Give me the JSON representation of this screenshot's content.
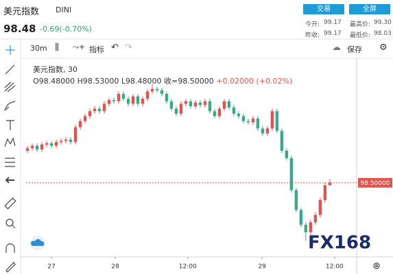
{
  "header": {
    "name": "美元指数",
    "code": "DINI",
    "price": "98.48",
    "change": "-0.69(-0.70%)",
    "buttons": [
      "交易",
      "全屏"
    ],
    "stats": [
      {
        "label": "今开:",
        "value": "99.17"
      },
      {
        "label": "最高价:",
        "value": "99.30"
      },
      {
        "label": "昨收:",
        "value": "99.17"
      },
      {
        "label": "最低价:",
        "value": "98.03"
      }
    ]
  },
  "toolbar": {
    "interval": "30m",
    "indicators": "指标",
    "save": "保存"
  },
  "watermark": "FX168",
  "chart_data": {
    "type": "candlestick",
    "title": "美元指数, 30",
    "ohlc_labels": [
      "O98.48000",
      "H98.53000",
      "L98.48000",
      "收=98.50000",
      "+0.02000 (+0.02%)"
    ],
    "up_color": "#e0534f",
    "down_color": "#3aa88a",
    "price_line_color": "#e0534f",
    "x": [
      0,
      1,
      2,
      3,
      4,
      5,
      6,
      7,
      8,
      9,
      10,
      11,
      12,
      13,
      14,
      15,
      16,
      17,
      18,
      19,
      20,
      21,
      22,
      23,
      24,
      25,
      26,
      27,
      28,
      29,
      30,
      31,
      32,
      33,
      34,
      35,
      36,
      37,
      38,
      39,
      40,
      41,
      42,
      43,
      44,
      45,
      46,
      47,
      48,
      49,
      50,
      51,
      52,
      53,
      54,
      55,
      56,
      57,
      58,
      59,
      60,
      61,
      62,
      63
    ],
    "open": [
      98.76,
      98.78,
      98.8,
      98.77,
      98.81,
      98.82,
      98.8,
      98.83,
      98.84,
      98.85,
      98.83,
      98.95,
      99.0,
      99.04,
      99.08,
      99.1,
      99.08,
      99.14,
      99.17,
      99.16,
      99.22,
      99.18,
      99.14,
      99.2,
      99.14,
      99.18,
      99.24,
      99.26,
      99.25,
      99.22,
      99.16,
      99.1,
      99.06,
      99.14,
      99.16,
      99.12,
      99.15,
      99.13,
      99.16,
      99.08,
      99.04,
      99.1,
      99.16,
      99.11,
      99.06,
      99.04,
      99.0,
      98.99,
      99.02,
      98.94,
      98.9,
      98.94,
      99.08,
      98.92,
      98.76,
      98.7,
      98.44,
      98.28,
      98.16,
      98.1,
      98.18,
      98.24,
      98.36,
      98.48
    ],
    "high": [
      98.8,
      98.82,
      98.82,
      98.83,
      98.84,
      98.84,
      98.85,
      98.86,
      98.87,
      98.87,
      98.97,
      99.02,
      99.06,
      99.1,
      99.12,
      99.12,
      99.16,
      99.19,
      99.19,
      99.24,
      99.24,
      99.2,
      99.22,
      99.22,
      99.2,
      99.26,
      99.3,
      99.28,
      99.27,
      99.24,
      99.18,
      99.12,
      99.16,
      99.18,
      99.18,
      99.17,
      99.17,
      99.18,
      99.18,
      99.1,
      99.12,
      99.18,
      99.18,
      99.13,
      99.08,
      99.06,
      99.02,
      99.04,
      99.04,
      98.96,
      98.96,
      99.1,
      99.1,
      98.94,
      98.78,
      98.72,
      98.46,
      98.3,
      98.18,
      98.2,
      98.26,
      98.38,
      98.5,
      98.53
    ],
    "low": [
      98.74,
      98.76,
      98.75,
      98.75,
      98.79,
      98.78,
      98.78,
      98.81,
      98.82,
      98.81,
      98.81,
      98.93,
      98.98,
      99.02,
      99.06,
      99.06,
      99.06,
      99.12,
      99.14,
      99.14,
      99.16,
      99.12,
      99.12,
      99.12,
      99.12,
      99.16,
      99.22,
      99.23,
      99.2,
      99.14,
      99.08,
      99.04,
      99.04,
      99.12,
      99.1,
      99.1,
      99.11,
      99.11,
      99.06,
      99.02,
      99.02,
      99.08,
      99.09,
      99.04,
      99.02,
      98.98,
      98.97,
      98.97,
      98.92,
      98.88,
      98.88,
      98.92,
      98.9,
      98.74,
      98.68,
      98.42,
      98.26,
      98.14,
      98.03,
      98.08,
      98.16,
      98.22,
      98.34,
      98.48
    ],
    "close": [
      98.78,
      98.8,
      98.77,
      98.81,
      98.82,
      98.8,
      98.83,
      98.84,
      98.85,
      98.83,
      98.95,
      99.0,
      99.04,
      99.08,
      99.1,
      99.08,
      99.14,
      99.17,
      99.16,
      99.22,
      99.18,
      99.14,
      99.2,
      99.14,
      99.18,
      99.24,
      99.26,
      99.25,
      99.22,
      99.16,
      99.1,
      99.06,
      99.14,
      99.16,
      99.12,
      99.15,
      99.13,
      99.16,
      99.08,
      99.04,
      99.1,
      99.16,
      99.11,
      99.06,
      99.04,
      99.0,
      98.99,
      99.02,
      98.94,
      98.9,
      98.94,
      99.08,
      98.92,
      98.76,
      98.7,
      98.44,
      98.28,
      98.16,
      98.1,
      98.18,
      98.24,
      98.36,
      98.48,
      98.5
    ],
    "xlim": [
      -0.3,
      68.6
    ],
    "ylim": [
      97.9,
      99.47
    ],
    "xticks": [
      {
        "value": 5,
        "label": "27"
      },
      {
        "value": 18.3,
        "label": "28"
      },
      {
        "value": 33.4,
        "label": "12:00"
      },
      {
        "value": 48.9,
        "label": "29"
      },
      {
        "value": 64,
        "label": "12:00"
      }
    ],
    "price_line": {
      "value": 98.5,
      "label": "98.50000"
    }
  }
}
